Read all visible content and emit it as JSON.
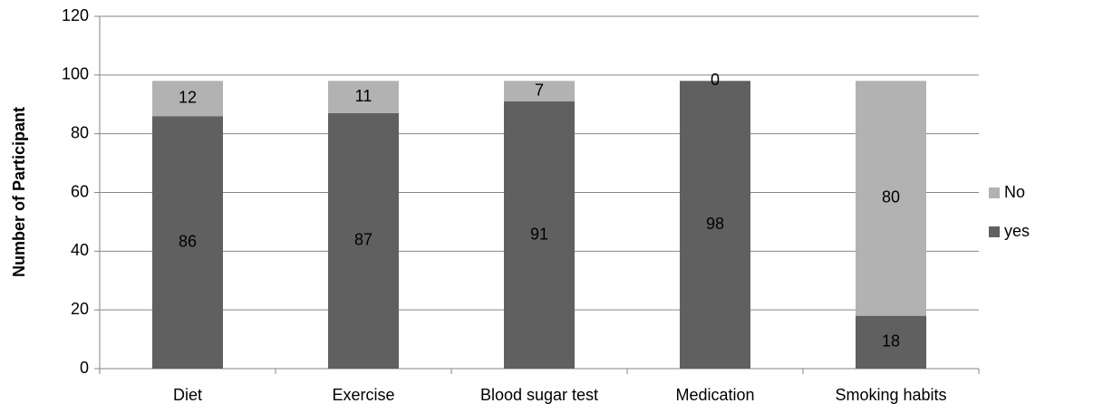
{
  "chart_data": {
    "type": "stacked_bar",
    "y_axis_label": "Number of Participant",
    "categories": [
      "Diet",
      "Exercise",
      "Blood sugar test",
      "Medication",
      "Smoking habits"
    ],
    "series": [
      {
        "name": "yes",
        "color": "#606060",
        "values": [
          86,
          87,
          91,
          98,
          18
        ]
      },
      {
        "name": "No",
        "color": "#b2b2b2",
        "values": [
          12,
          11,
          7,
          0,
          80
        ]
      }
    ],
    "ylim": [
      0,
      120
    ],
    "yticks": [
      0,
      20,
      40,
      60,
      80,
      100,
      120
    ],
    "grid": true,
    "legend": "right"
  }
}
